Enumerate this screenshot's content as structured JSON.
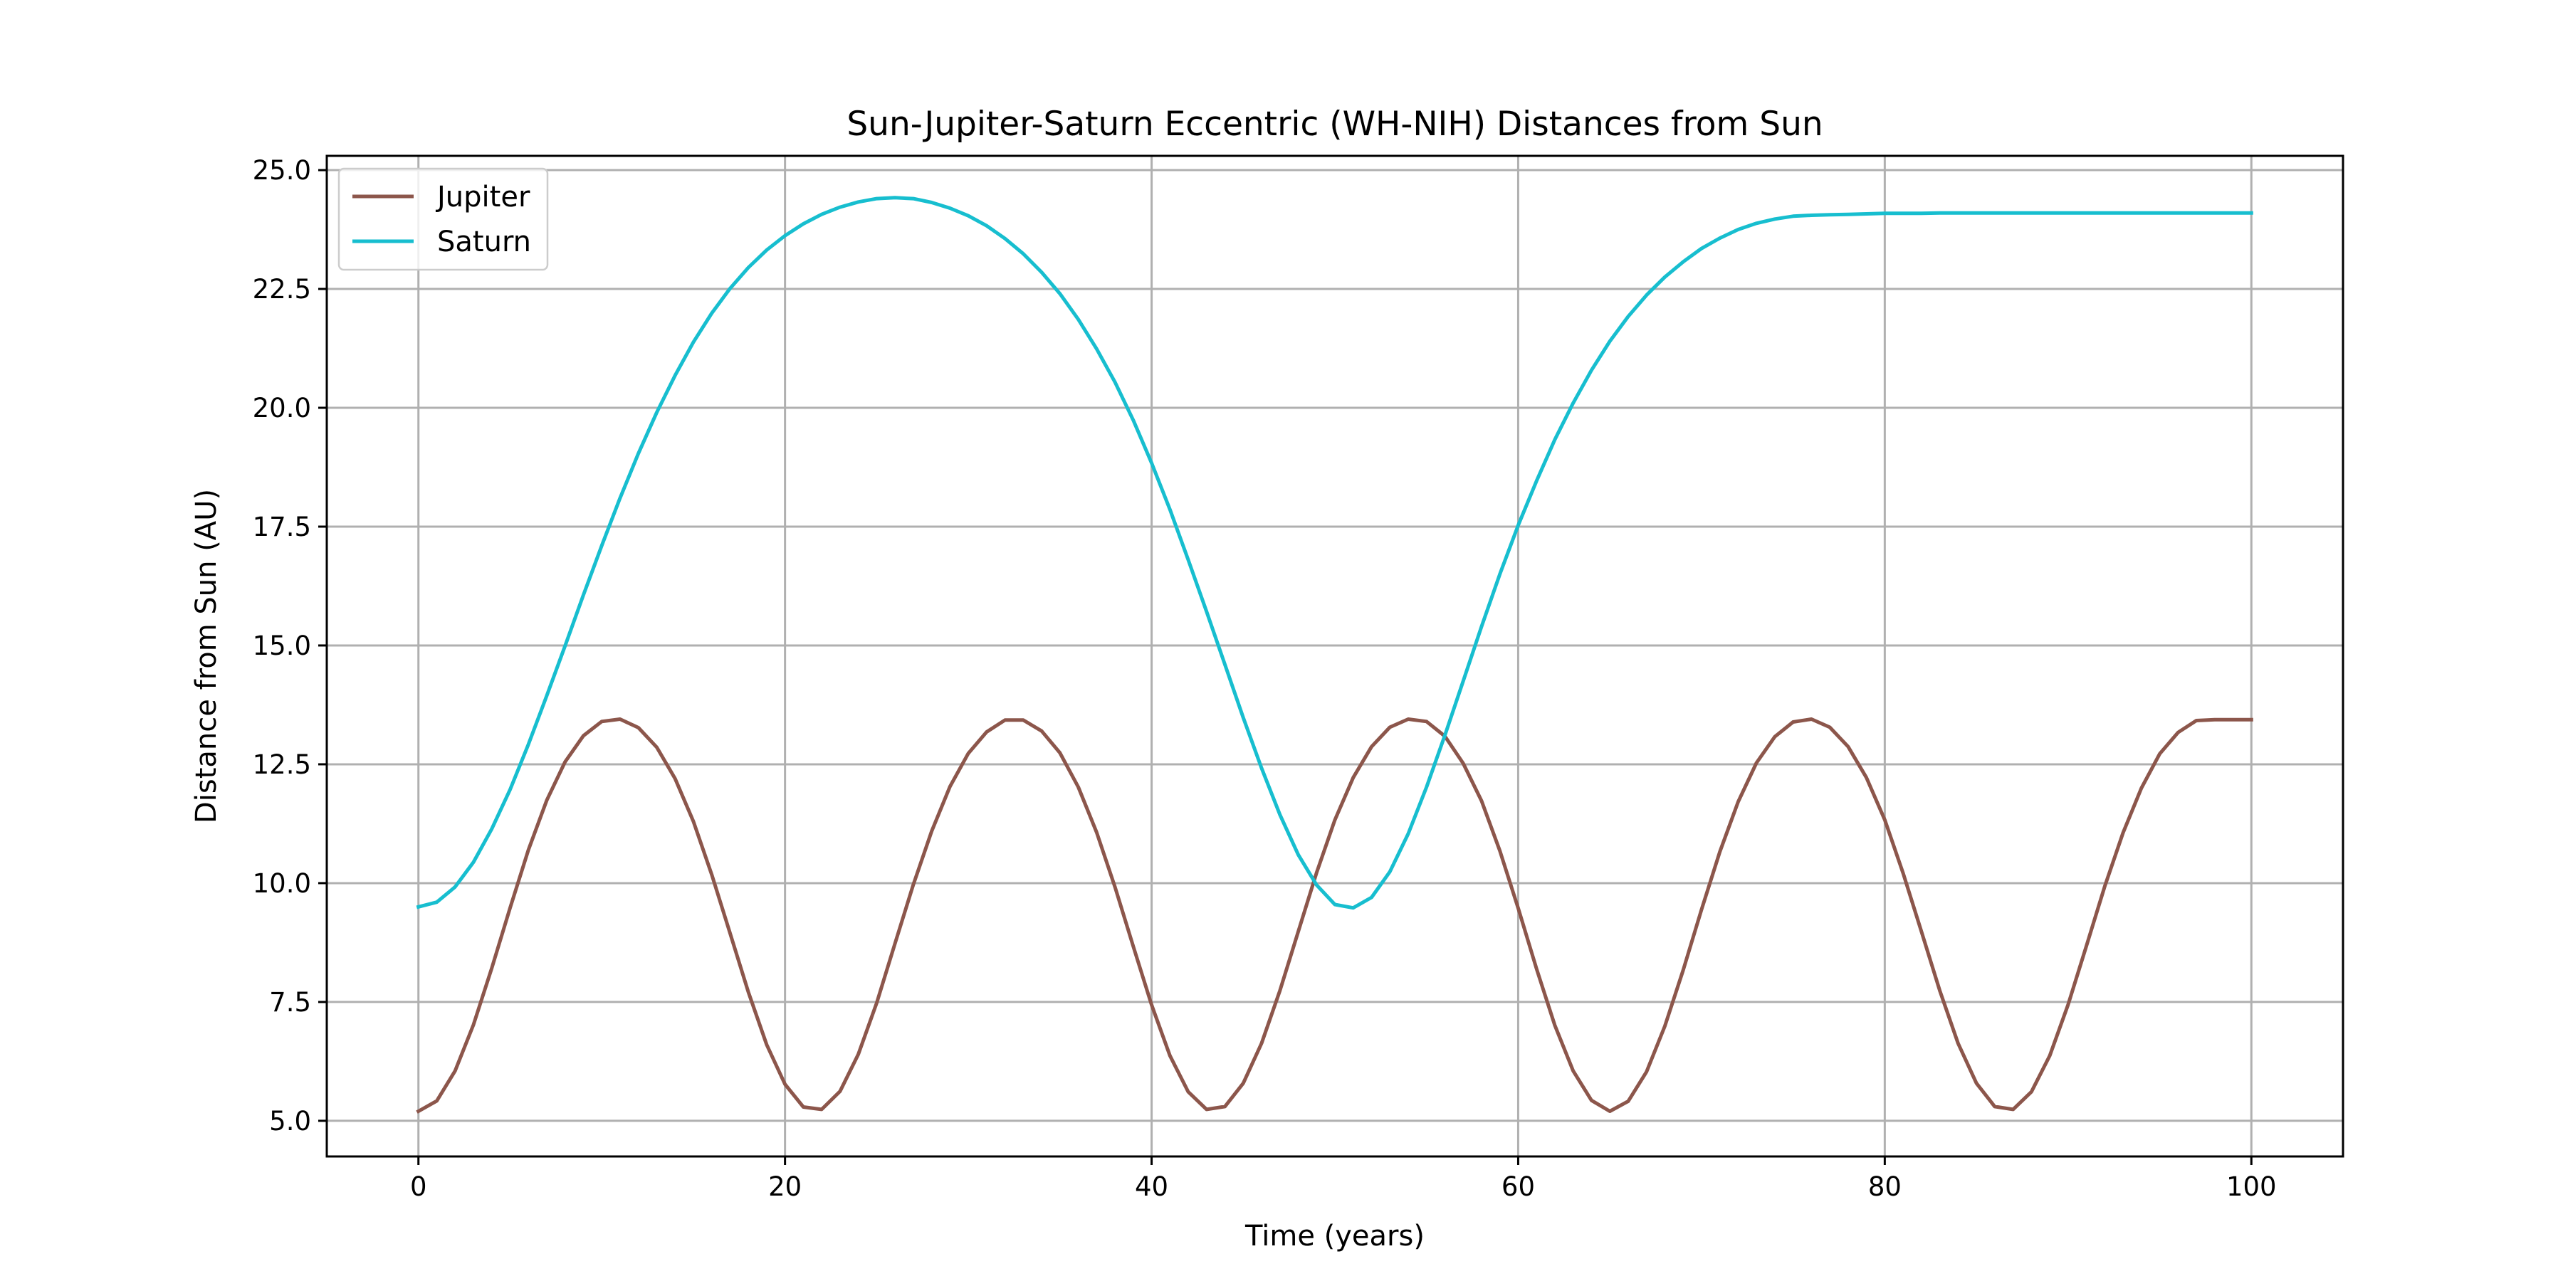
{
  "chart_data": {
    "type": "line",
    "title": "Sun-Jupiter-Saturn Eccentric (WH-NIH) Distances from Sun",
    "xlabel": "Time (years)",
    "ylabel": "Distance from Sun (AU)",
    "xlim": [
      -5,
      105
    ],
    "ylim": [
      4.25,
      25.3
    ],
    "xticks": [
      0,
      20,
      40,
      60,
      80,
      100
    ],
    "xtick_labels": [
      "0",
      "20",
      "40",
      "60",
      "80",
      "100"
    ],
    "yticks": [
      5.0,
      7.5,
      10.0,
      12.5,
      15.0,
      17.5,
      20.0,
      22.5,
      25.0
    ],
    "ytick_labels": [
      "5.0",
      "7.5",
      "10.0",
      "12.5",
      "15.0",
      "17.5",
      "20.0",
      "22.5",
      "25.0"
    ],
    "grid": true,
    "legend_position": "top-left",
    "series": [
      {
        "name": "Jupiter",
        "color": "#8c564b",
        "x": [
          0,
          1,
          2,
          3,
          4,
          5,
          6,
          7,
          8,
          9,
          10,
          11,
          12,
          13,
          14,
          15,
          16,
          17,
          18,
          19,
          20,
          21,
          22,
          23,
          24,
          25,
          26,
          27,
          28,
          29,
          30,
          31,
          32,
          33,
          34,
          35,
          36,
          37,
          38,
          39,
          40,
          41,
          42,
          43,
          44,
          45,
          46,
          47,
          48,
          49,
          50,
          51,
          52,
          53,
          54,
          55,
          56,
          57,
          58,
          59,
          60,
          61,
          62,
          63,
          64,
          65,
          66,
          67,
          68,
          69,
          70,
          71,
          72,
          73,
          74,
          75,
          76,
          77,
          78,
          79,
          80,
          81,
          82,
          83,
          84,
          85,
          86,
          87,
          88,
          89,
          90,
          91,
          92,
          93,
          94,
          95,
          96,
          97,
          98,
          99,
          100
        ],
        "y": [
          5.2,
          5.42,
          6.05,
          7.02,
          8.21,
          9.48,
          10.7,
          11.74,
          12.55,
          13.1,
          13.4,
          13.45,
          13.27,
          12.86,
          12.2,
          11.3,
          10.18,
          8.95,
          7.71,
          6.6,
          5.77,
          5.29,
          5.24,
          5.62,
          6.4,
          7.48,
          8.73,
          9.97,
          11.09,
          12.03,
          12.73,
          13.18,
          13.43,
          13.43,
          13.2,
          12.74,
          12.02,
          11.07,
          9.92,
          8.67,
          7.44,
          6.37,
          5.61,
          5.24,
          5.3,
          5.79,
          6.63,
          7.74,
          8.98,
          10.22,
          11.33,
          12.22,
          12.87,
          13.28,
          13.45,
          13.4,
          13.09,
          12.52,
          11.73,
          10.68,
          9.47,
          8.2,
          7.01,
          6.05,
          5.43,
          5.2,
          5.41,
          6.03,
          6.99,
          8.17,
          9.44,
          10.66,
          11.71,
          12.53,
          13.08,
          13.39,
          13.45,
          13.28,
          12.87,
          12.22,
          11.33,
          10.21,
          8.98,
          7.74,
          6.63,
          5.79,
          5.3,
          5.24,
          5.61,
          6.37,
          7.44,
          8.68,
          9.93,
          11.06,
          12.0,
          12.72,
          13.17,
          13.42,
          13.44,
          13.44,
          13.44
        ]
      },
      {
        "name": "Saturn",
        "color": "#17becf",
        "x": [
          0,
          1,
          2,
          3,
          4,
          5,
          6,
          7,
          8,
          9,
          10,
          11,
          12,
          13,
          14,
          15,
          16,
          17,
          18,
          19,
          20,
          21,
          22,
          23,
          24,
          25,
          26,
          27,
          28,
          29,
          30,
          31,
          32,
          33,
          34,
          35,
          36,
          37,
          38,
          39,
          40,
          41,
          42,
          43,
          44,
          45,
          46,
          47,
          48,
          49,
          50,
          51,
          52,
          53,
          54,
          55,
          56,
          57,
          58,
          59,
          60,
          61,
          62,
          63,
          64,
          65,
          66,
          67,
          68,
          69,
          70,
          71,
          72,
          73,
          74,
          75,
          76,
          77,
          78,
          79,
          80,
          81,
          82,
          83,
          84,
          85,
          86,
          87,
          88,
          89,
          90,
          91,
          92,
          93,
          94,
          95,
          96,
          97,
          98,
          99,
          100
        ],
        "y": [
          9.5,
          9.6,
          9.92,
          10.44,
          11.14,
          11.97,
          12.92,
          13.94,
          14.99,
          16.06,
          17.1,
          18.1,
          19.04,
          19.9,
          20.68,
          21.38,
          21.99,
          22.51,
          22.95,
          23.32,
          23.62,
          23.87,
          24.07,
          24.22,
          24.33,
          24.4,
          24.42,
          24.4,
          24.32,
          24.2,
          24.04,
          23.83,
          23.56,
          23.24,
          22.85,
          22.4,
          21.86,
          21.24,
          20.54,
          19.74,
          18.84,
          17.86,
          16.8,
          15.71,
          14.6,
          13.48,
          12.42,
          11.44,
          10.6,
          9.96,
          9.55,
          9.48,
          9.7,
          10.24,
          11.04,
          12.02,
          13.11,
          14.25,
          15.4,
          16.5,
          17.53,
          18.46,
          19.33,
          20.1,
          20.79,
          21.4,
          21.92,
          22.37,
          22.75,
          23.07,
          23.35,
          23.57,
          23.75,
          23.88,
          23.97,
          24.03,
          24.05,
          24.06,
          24.07,
          24.08,
          24.09,
          24.09,
          24.09,
          24.1,
          24.1,
          24.1,
          24.1,
          24.1,
          24.1,
          24.1,
          24.1,
          24.1,
          24.1,
          24.1,
          24.1,
          24.1,
          24.1,
          24.1,
          24.1,
          24.1,
          24.1
        ]
      }
    ]
  }
}
